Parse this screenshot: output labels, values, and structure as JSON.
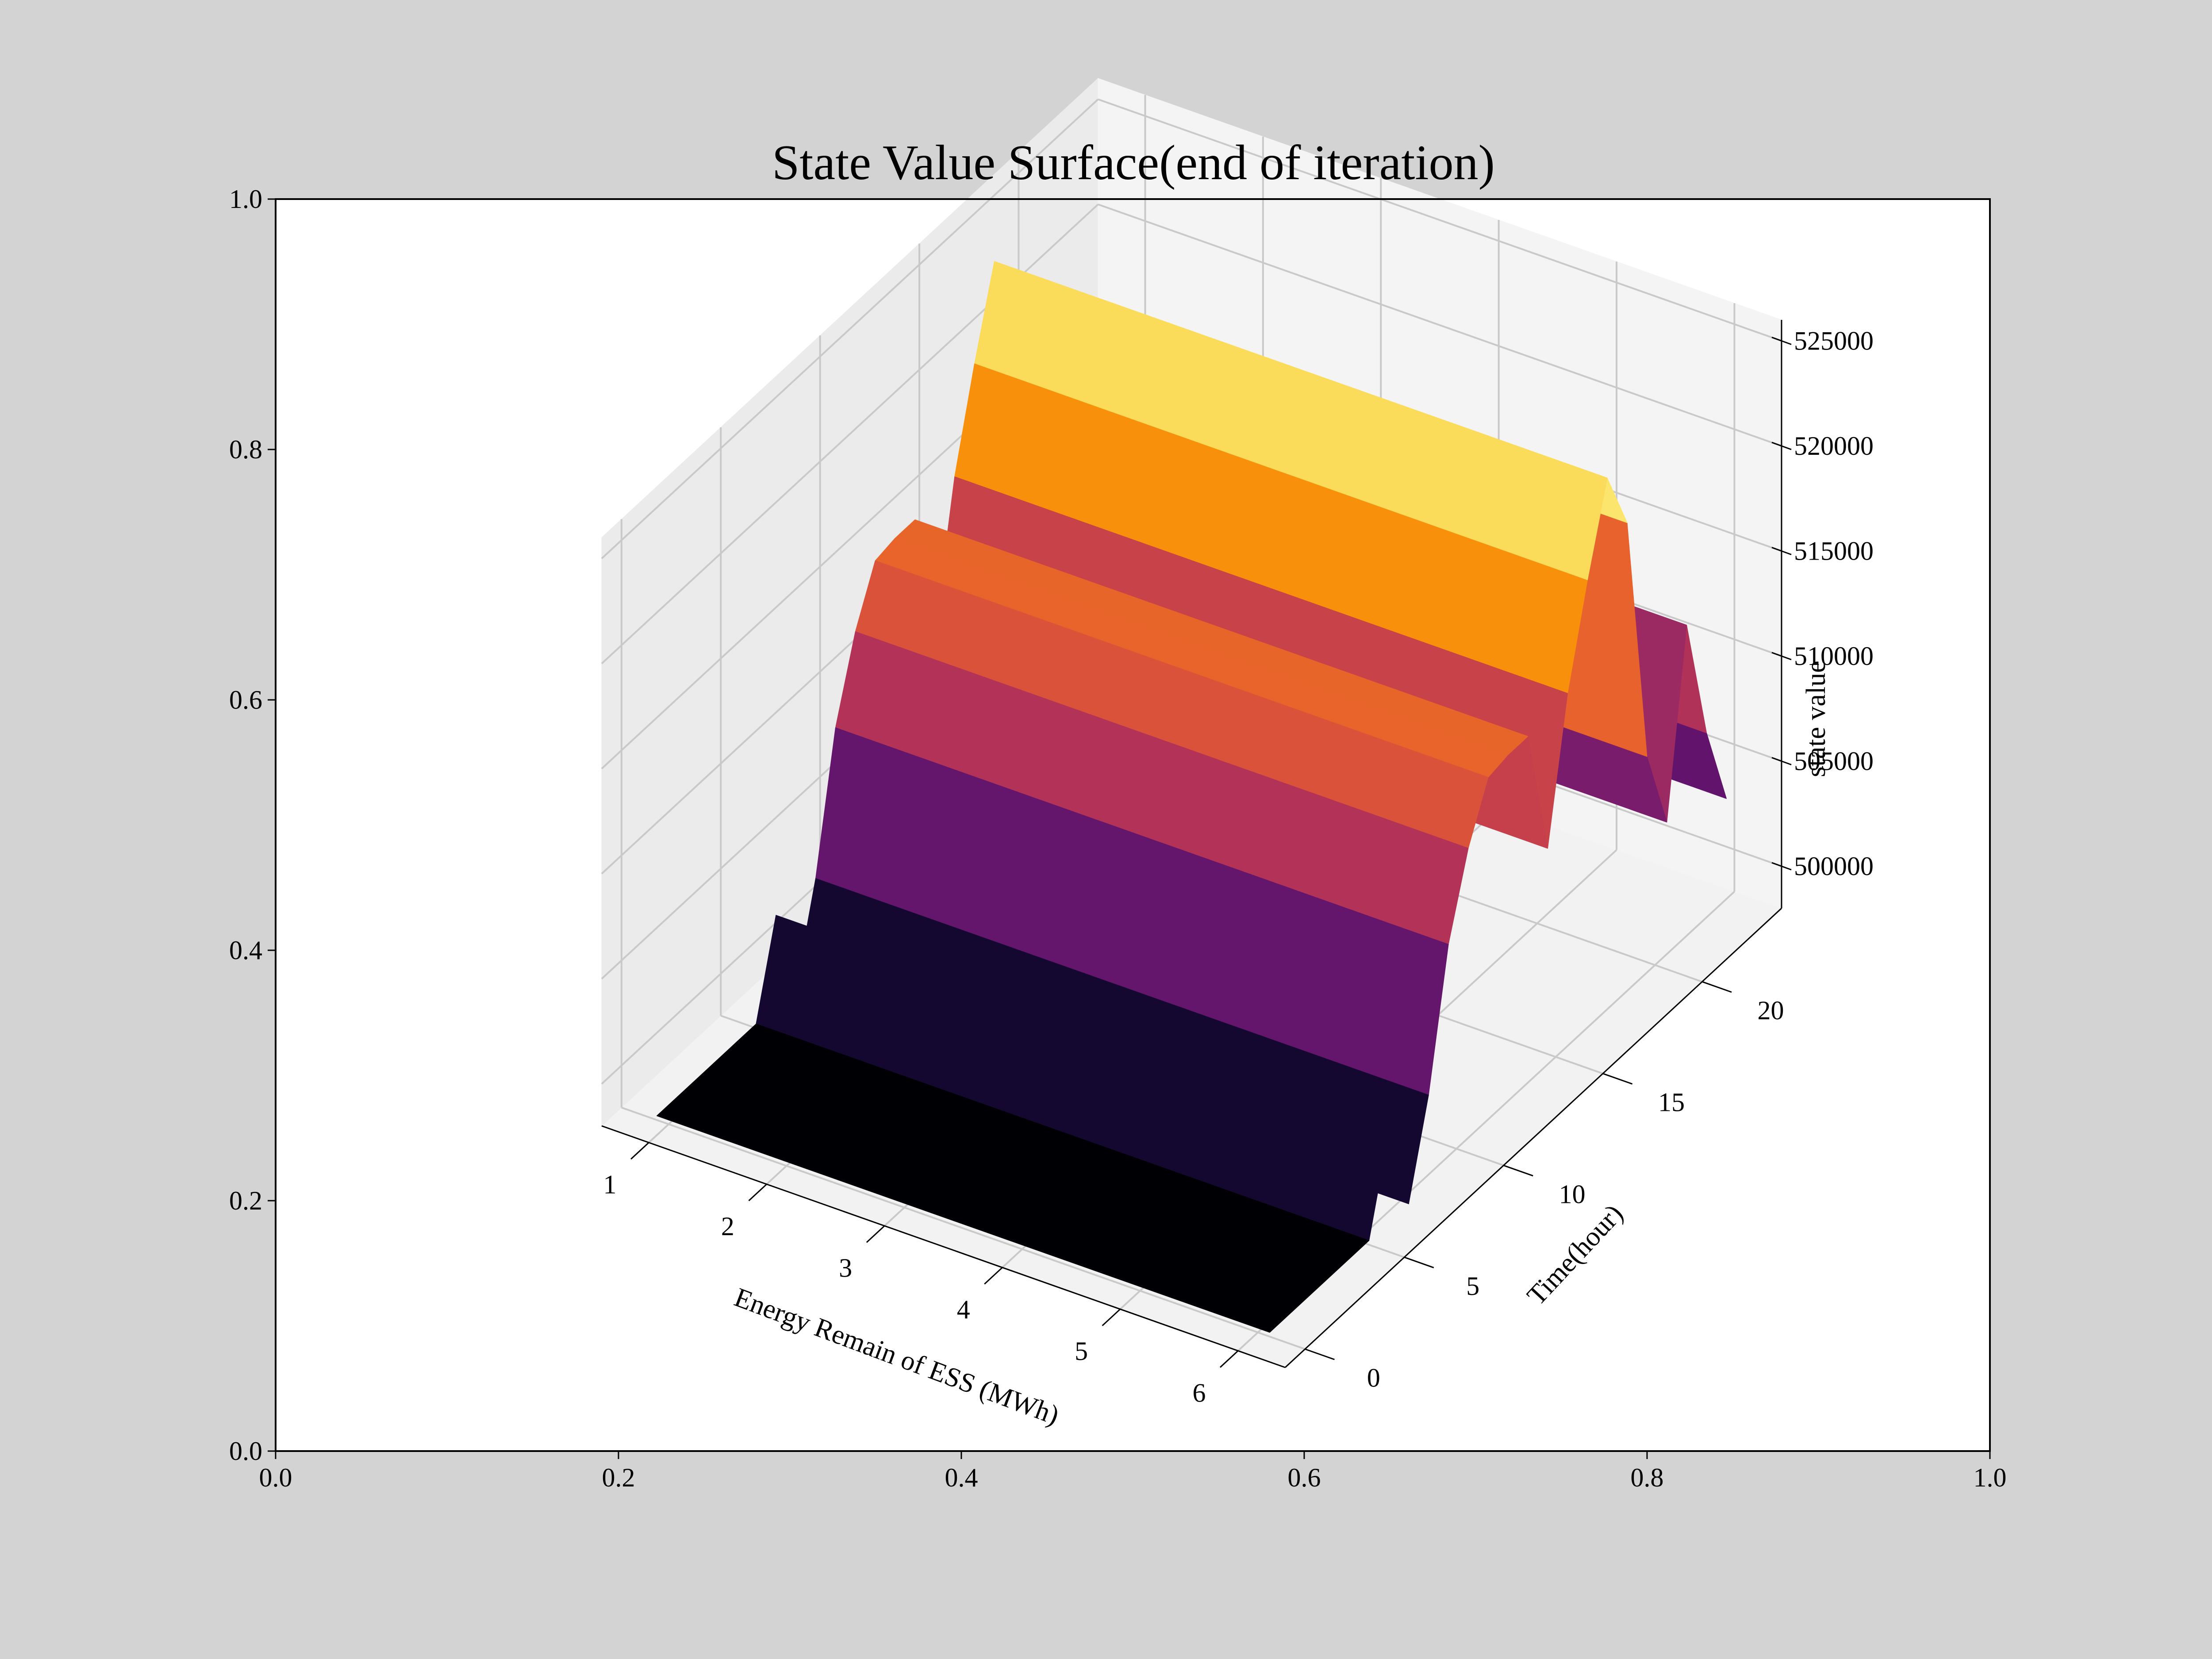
{
  "chart_data": {
    "type": "surface3d",
    "title": "State Value Surface(end of iteration)",
    "outer_axes": {
      "xlim": [
        0.0,
        1.0
      ],
      "ylim": [
        0.0,
        1.0
      ],
      "xticks": [
        "0.0",
        "0.2",
        "0.4",
        "0.6",
        "0.8",
        "1.0"
      ],
      "yticks": [
        "0.0",
        "0.2",
        "0.4",
        "0.6",
        "0.8",
        "1.0"
      ]
    },
    "xlabel": "Energy Remain of ESS (MWh)",
    "ylabel": "Time(hour)",
    "zlabel": "state value",
    "xlim": [
      0.6,
      6.4
    ],
    "ylim": [
      -1,
      24
    ],
    "zlim": [
      498000,
      526000
    ],
    "xticks": [
      "1",
      "2",
      "3",
      "4",
      "5",
      "6"
    ],
    "yticks": [
      "0",
      "5",
      "10",
      "15",
      "20"
    ],
    "zticks": [
      "500000",
      "505000",
      "510000",
      "515000",
      "520000",
      "525000"
    ],
    "x": [
      0.9,
      6.1
    ],
    "time_hours": [
      0,
      1,
      2,
      3,
      4,
      5,
      6,
      7,
      8,
      9,
      10,
      11,
      12,
      13,
      14,
      15,
      16,
      17,
      18,
      19,
      20,
      21,
      22,
      23
    ],
    "values_by_hour": [
      498200,
      498200,
      498200,
      498200,
      498200,
      498200,
      502500,
      498200,
      502500,
      508800,
      512500,
      515000,
      515200,
      515200,
      509000,
      515500,
      520000,
      524000,
      521000,
      509000,
      505000,
      513500,
      507500,
      503500
    ],
    "colormap": "inferno",
    "grid": true
  }
}
